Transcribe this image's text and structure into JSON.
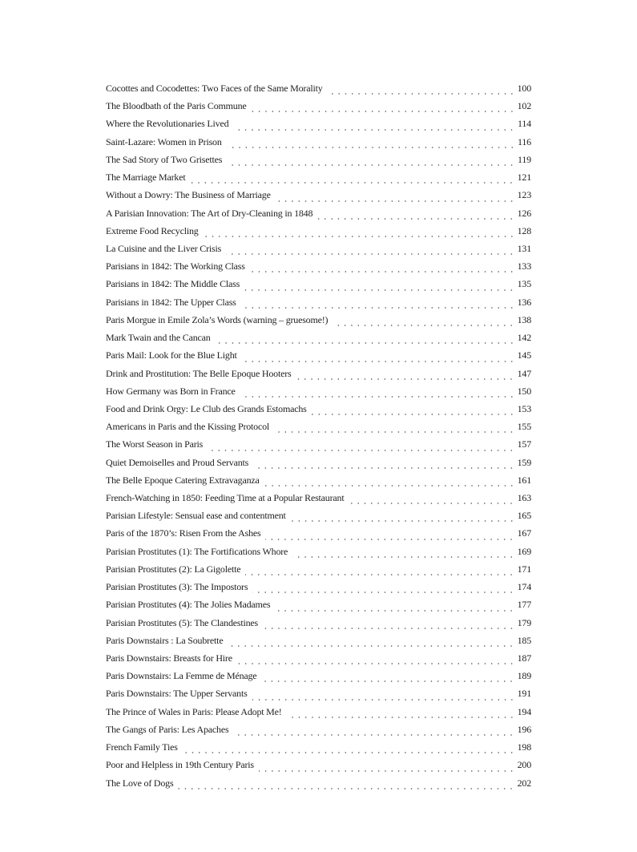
{
  "entries": [
    {
      "title": "Cocottes and Cocodettes: Two Faces of the Same Morality",
      "page": "100"
    },
    {
      "title": "The Bloodbath of the Paris Commune",
      "page": "102"
    },
    {
      "title": "Where the Revolutionaries Lived",
      "page": "114"
    },
    {
      "title": "Saint-Lazare: Women in Prison",
      "page": "116"
    },
    {
      "title": "The Sad Story of Two Grisettes",
      "page": "119"
    },
    {
      "title": "The Marriage Market",
      "page": "121"
    },
    {
      "title": "Without a Dowry: The Business of Marriage",
      "page": "123"
    },
    {
      "title": "A Parisian Innovation: The Art of Dry-Cleaning in 1848",
      "page": "126"
    },
    {
      "title": "Extreme Food Recycling",
      "page": "128"
    },
    {
      "title": "La Cuisine and the Liver Crisis",
      "page": "131"
    },
    {
      "title": "Parisians in 1842: The Working Class",
      "page": "133"
    },
    {
      "title": "Parisians in 1842: The Middle Class",
      "page": "135"
    },
    {
      "title": "Parisians in 1842: The Upper Class",
      "page": "136"
    },
    {
      "title": "Paris Morgue in Emile Zola’s Words (warning – gruesome!)",
      "page": "138"
    },
    {
      "title": "Mark Twain and the Cancan",
      "page": "142"
    },
    {
      "title": "Paris Mail: Look for the Blue Light",
      "page": "145"
    },
    {
      "title": "Drink and Prostitution: The Belle Epoque Hooters",
      "page": "147"
    },
    {
      "title": "How Germany was Born in France",
      "page": "150"
    },
    {
      "title": "Food and Drink Orgy: Le Club des Grands Estomachs",
      "page": "153"
    },
    {
      "title": "Americans in Paris and the Kissing Protocol",
      "page": "155"
    },
    {
      "title": "The Worst Season in Paris",
      "page": "157"
    },
    {
      "title": "Quiet Demoiselles and Proud Servants",
      "page": "159"
    },
    {
      "title": "The Belle Epoque Catering Extravaganza",
      "page": "161"
    },
    {
      "title": "French-Watching in 1850: Feeding Time at a Popular Restaurant",
      "page": "163"
    },
    {
      "title": "Parisian Lifestyle: Sensual ease and contentment",
      "page": "165"
    },
    {
      "title": "Paris of the 1870’s: Risen From the Ashes",
      "page": "167"
    },
    {
      "title": "Parisian Prostitutes (1): The Fortifications Whore",
      "page": "169"
    },
    {
      "title": "Parisian Prostitutes (2): La Gigolette",
      "page": "171"
    },
    {
      "title": "Parisian Prostitutes (3): The Impostors",
      "page": "174"
    },
    {
      "title": "Parisian Prostitutes (4): The Jolies Madames",
      "page": "177"
    },
    {
      "title": "Parisian Prostitutes (5): The Clandestines",
      "page": "179"
    },
    {
      "title": "Paris Downstairs : La Soubrette",
      "page": "185"
    },
    {
      "title": "Paris Downstairs: Breasts for Hire",
      "page": "187"
    },
    {
      "title": "Paris Downstairs: La Femme de Ménage",
      "page": "189"
    },
    {
      "title": "Paris Downstairs: The Upper Servants",
      "page": "191"
    },
    {
      "title": "The Prince of Wales in Paris: Please Adopt Me!",
      "page": "194"
    },
    {
      "title": "The Gangs of Paris: Les Apaches",
      "page": "196"
    },
    {
      "title": "French Family Ties",
      "page": "198"
    },
    {
      "title": "Poor and Helpless in 19th Century Paris",
      "page": "200"
    },
    {
      "title": "The Love of Dogs",
      "page": "202"
    }
  ]
}
